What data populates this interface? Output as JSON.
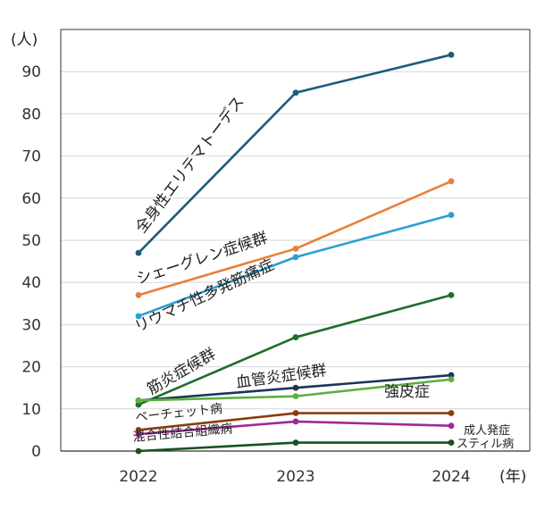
{
  "chart_data": {
    "type": "line",
    "x": [
      "2022",
      "2023",
      "2024"
    ],
    "xunit": "(年)",
    "yunit": "(人)",
    "ylim": [
      0,
      100
    ],
    "yticks": [
      0,
      10,
      20,
      30,
      40,
      50,
      60,
      70,
      80,
      90
    ],
    "grid": "horizontal",
    "legend": "labels-on-lines",
    "series": [
      {
        "name": "全身性エリテマトーデス",
        "color": "#1b5e7a",
        "values": [
          47,
          85,
          94
        ]
      },
      {
        "name": "シェーグレン症候群",
        "color": "#e8803a",
        "values": [
          37,
          48,
          64
        ]
      },
      {
        "name": "リウマチ性多発筋痛症",
        "color": "#2b9fd0",
        "values": [
          32,
          46,
          56
        ]
      },
      {
        "name": "筋炎症候群",
        "color": "#1f6f2a",
        "values": [
          11,
          27,
          37
        ]
      },
      {
        "name": "血管炎症候群",
        "color": "#1c3558",
        "values": [
          12,
          15,
          18
        ]
      },
      {
        "name": "強皮症",
        "color": "#5cb13e",
        "values": [
          12,
          13,
          17
        ]
      },
      {
        "name": "ベーチェット病",
        "color": "#8a3b12",
        "values": [
          5,
          9,
          9
        ]
      },
      {
        "name": "混合性結合組織病",
        "color": "#a0289a",
        "values": [
          4,
          7,
          6
        ]
      },
      {
        "name": "成人発症スティル病",
        "label_lines": [
          "成人発症",
          "スティル病"
        ],
        "color": "#175220",
        "values": [
          0,
          2,
          2
        ]
      }
    ]
  }
}
